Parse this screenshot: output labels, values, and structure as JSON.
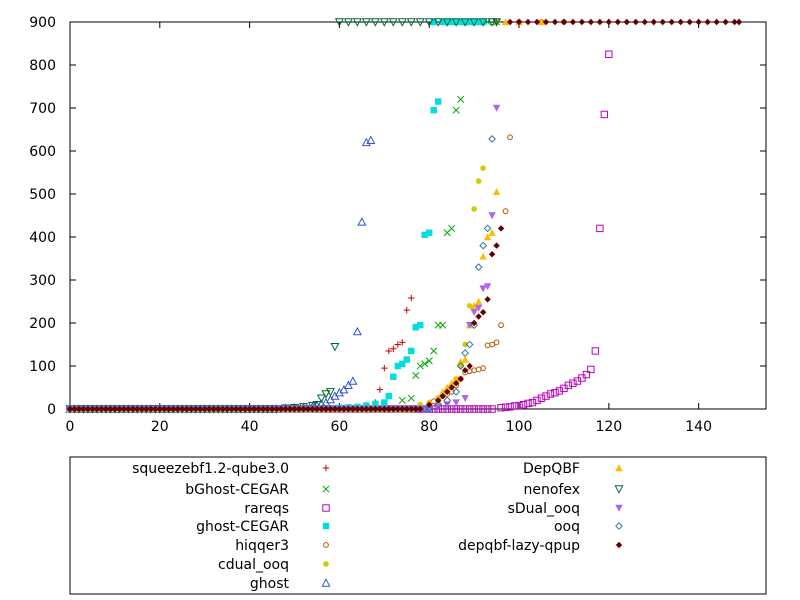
{
  "chart_data": {
    "type": "scatter",
    "title": "",
    "xlabel": "",
    "ylabel": "",
    "xlim": [
      0,
      155
    ],
    "ylim": [
      0,
      900
    ],
    "x_ticks": [
      0,
      20,
      40,
      60,
      80,
      100,
      120,
      140
    ],
    "y_ticks": [
      0,
      100,
      200,
      300,
      400,
      500,
      600,
      700,
      800,
      900
    ],
    "grid": false,
    "legend_placement": "below",
    "series": [
      {
        "name": "squeezebf1.2-qube3.0",
        "color": "#cc0000",
        "marker": "plus",
        "baseline_max_x": 66,
        "points": [
          [
            68,
            15
          ],
          [
            69,
            45
          ],
          [
            70,
            95
          ],
          [
            71,
            135
          ],
          [
            72,
            140
          ],
          [
            73,
            150
          ],
          [
            74,
            155
          ],
          [
            75,
            230
          ],
          [
            76,
            258
          ],
          [
            90,
            900
          ],
          [
            92,
            900
          ],
          [
            95,
            900
          ],
          [
            100,
            900
          ],
          [
            110,
            900
          ],
          [
            120,
            900
          ],
          [
            130,
            900
          ],
          [
            140,
            900
          ],
          [
            149,
            900
          ]
        ]
      },
      {
        "name": "bGhost-CEGAR",
        "color": "#00aa00",
        "marker": "x",
        "baseline_max_x": 62,
        "points": [
          [
            66,
            5
          ],
          [
            70,
            10
          ],
          [
            74,
            20
          ],
          [
            76,
            25
          ],
          [
            77,
            78
          ],
          [
            78,
            100
          ],
          [
            79,
            105
          ],
          [
            80,
            112
          ],
          [
            81,
            135
          ],
          [
            82,
            195
          ],
          [
            83,
            195
          ],
          [
            84,
            410
          ],
          [
            85,
            420
          ],
          [
            86,
            695
          ],
          [
            87,
            720
          ],
          [
            88,
            900
          ],
          [
            89,
            900
          ],
          [
            91,
            900
          ],
          [
            93,
            900
          ],
          [
            95,
            900
          ]
        ]
      },
      {
        "name": "rareqs",
        "color": "#bb00bb",
        "marker": "square",
        "baseline_max_x": 94,
        "points": [
          [
            96,
            3
          ],
          [
            97,
            4
          ],
          [
            98,
            5
          ],
          [
            99,
            7
          ],
          [
            100,
            8
          ],
          [
            101,
            10
          ],
          [
            102,
            13
          ],
          [
            103,
            15
          ],
          [
            104,
            20
          ],
          [
            105,
            25
          ],
          [
            106,
            30
          ],
          [
            107,
            35
          ],
          [
            108,
            38
          ],
          [
            109,
            42
          ],
          [
            110,
            48
          ],
          [
            111,
            55
          ],
          [
            112,
            60
          ],
          [
            113,
            65
          ],
          [
            114,
            72
          ],
          [
            115,
            80
          ],
          [
            116,
            92
          ],
          [
            117,
            135
          ],
          [
            118,
            420
          ],
          [
            119,
            685
          ],
          [
            120,
            825
          ]
        ]
      },
      {
        "name": "ghost-CEGAR",
        "color": "#00dddd",
        "marker": "filled-square",
        "baseline_max_x": 56,
        "points": [
          [
            58,
            2
          ],
          [
            60,
            3
          ],
          [
            62,
            4
          ],
          [
            64,
            5
          ],
          [
            66,
            8
          ],
          [
            68,
            12
          ],
          [
            70,
            15
          ],
          [
            71,
            30
          ],
          [
            72,
            75
          ],
          [
            73,
            100
          ],
          [
            74,
            105
          ],
          [
            75,
            115
          ],
          [
            76,
            135
          ],
          [
            77,
            190
          ],
          [
            78,
            195
          ],
          [
            79,
            405
          ],
          [
            80,
            410
          ],
          [
            81,
            695
          ],
          [
            82,
            715
          ],
          [
            81,
            900
          ],
          [
            83,
            900
          ],
          [
            84,
            900
          ],
          [
            85,
            900
          ],
          [
            86,
            900
          ],
          [
            87,
            900
          ],
          [
            88,
            900
          ],
          [
            89,
            900
          ],
          [
            90,
            900
          ],
          [
            91,
            900
          ],
          [
            92,
            900
          ]
        ]
      },
      {
        "name": "hiqqer3",
        "color": "#bb5500",
        "marker": "circle",
        "baseline_max_x": 76,
        "points": [
          [
            78,
            8
          ],
          [
            80,
            12
          ],
          [
            81,
            18
          ],
          [
            82,
            25
          ],
          [
            83,
            30
          ],
          [
            84,
            35
          ],
          [
            85,
            40
          ],
          [
            86,
            55
          ],
          [
            87,
            70
          ],
          [
            88,
            85
          ],
          [
            89,
            88
          ],
          [
            90,
            90
          ],
          [
            91,
            92
          ],
          [
            92,
            95
          ],
          [
            93,
            148
          ],
          [
            94,
            150
          ],
          [
            95,
            155
          ],
          [
            96,
            195
          ],
          [
            97,
            460
          ],
          [
            98,
            632
          ],
          [
            100,
            900
          ],
          [
            105,
            900
          ],
          [
            110,
            900
          ]
        ]
      },
      {
        "name": "cdual_ooq",
        "color": "#cccc00",
        "marker": "filled-circle",
        "baseline_max_x": 76,
        "points": [
          [
            78,
            10
          ],
          [
            80,
            15
          ],
          [
            82,
            25
          ],
          [
            84,
            40
          ],
          [
            86,
            70
          ],
          [
            87,
            100
          ],
          [
            88,
            150
          ],
          [
            89,
            240
          ],
          [
            90,
            465
          ],
          [
            91,
            530
          ],
          [
            92,
            560
          ]
        ]
      },
      {
        "name": "ghost",
        "color": "#3355cc",
        "marker": "triangle",
        "baseline_max_x": 46,
        "points": [
          [
            48,
            2
          ],
          [
            50,
            3
          ],
          [
            52,
            4
          ],
          [
            54,
            5
          ],
          [
            55,
            8
          ],
          [
            56,
            12
          ],
          [
            57,
            15
          ],
          [
            58,
            22
          ],
          [
            59,
            30
          ],
          [
            60,
            38
          ],
          [
            61,
            45
          ],
          [
            62,
            55
          ],
          [
            63,
            65
          ],
          [
            64,
            180
          ],
          [
            65,
            435
          ],
          [
            66,
            620
          ],
          [
            67,
            625
          ]
        ]
      },
      {
        "name": "DepQBF",
        "color": "#ffbb00",
        "marker": "filled-triangle",
        "baseline_max_x": 76,
        "points": [
          [
            78,
            8
          ],
          [
            80,
            15
          ],
          [
            82,
            22
          ],
          [
            83,
            40
          ],
          [
            84,
            50
          ],
          [
            85,
            60
          ],
          [
            86,
            70
          ],
          [
            87,
            110
          ],
          [
            88,
            115
          ],
          [
            89,
            195
          ],
          [
            90,
            240
          ],
          [
            91,
            250
          ],
          [
            92,
            355
          ],
          [
            93,
            400
          ],
          [
            94,
            410
          ],
          [
            95,
            505
          ],
          [
            97,
            900
          ],
          [
            100,
            900
          ],
          [
            105,
            900
          ]
        ]
      },
      {
        "name": "nenofex",
        "color": "#006633",
        "marker": "triangle-down",
        "baseline_max_x": 46,
        "points": [
          [
            48,
            2
          ],
          [
            50,
            3
          ],
          [
            52,
            5
          ],
          [
            54,
            8
          ],
          [
            55,
            10
          ],
          [
            56,
            25
          ],
          [
            57,
            35
          ],
          [
            58,
            40
          ],
          [
            59,
            145
          ],
          [
            60,
            900
          ],
          [
            62,
            900
          ],
          [
            64,
            900
          ],
          [
            66,
            900
          ],
          [
            68,
            900
          ],
          [
            70,
            900
          ],
          [
            72,
            900
          ],
          [
            74,
            900
          ],
          [
            76,
            900
          ],
          [
            78,
            900
          ],
          [
            80,
            900
          ],
          [
            82,
            900
          ],
          [
            84,
            900
          ],
          [
            86,
            900
          ],
          [
            88,
            900
          ],
          [
            90,
            900
          ],
          [
            92,
            900
          ],
          [
            94,
            900
          ],
          [
            95,
            900
          ]
        ]
      },
      {
        "name": "sDual_ooq",
        "color": "#aa66ee",
        "marker": "filled-triangle-down",
        "baseline_max_x": 80,
        "points": [
          [
            82,
            5
          ],
          [
            84,
            10
          ],
          [
            86,
            15
          ],
          [
            88,
            25
          ],
          [
            89,
            195
          ],
          [
            90,
            225
          ],
          [
            91,
            235
          ],
          [
            92,
            280
          ],
          [
            93,
            285
          ],
          [
            94,
            450
          ],
          [
            95,
            700
          ]
        ]
      },
      {
        "name": "ooq",
        "color": "#3377aa",
        "marker": "diamond",
        "baseline_max_x": 80,
        "points": [
          [
            82,
            10
          ],
          [
            84,
            20
          ],
          [
            86,
            40
          ],
          [
            87,
            100
          ],
          [
            88,
            130
          ],
          [
            89,
            150
          ],
          [
            90,
            195
          ],
          [
            91,
            330
          ],
          [
            92,
            380
          ],
          [
            93,
            420
          ],
          [
            94,
            628
          ]
        ]
      },
      {
        "name": "depqbf-lazy-qpup",
        "color": "#660000",
        "marker": "filled-diamond",
        "baseline_max_x": 78,
        "points": [
          [
            80,
            10
          ],
          [
            82,
            20
          ],
          [
            83,
            30
          ],
          [
            84,
            40
          ],
          [
            85,
            50
          ],
          [
            86,
            60
          ],
          [
            87,
            70
          ],
          [
            88,
            90
          ],
          [
            89,
            100
          ],
          [
            90,
            200
          ],
          [
            91,
            215
          ],
          [
            92,
            225
          ],
          [
            93,
            255
          ],
          [
            94,
            360
          ],
          [
            95,
            380
          ],
          [
            96,
            420
          ],
          [
            98,
            900
          ],
          [
            100,
            900
          ],
          [
            102,
            900
          ],
          [
            104,
            900
          ],
          [
            106,
            900
          ],
          [
            108,
            900
          ],
          [
            110,
            900
          ],
          [
            112,
            900
          ],
          [
            114,
            900
          ],
          [
            116,
            900
          ],
          [
            118,
            900
          ],
          [
            120,
            900
          ],
          [
            122,
            900
          ],
          [
            124,
            900
          ],
          [
            126,
            900
          ],
          [
            128,
            900
          ],
          [
            130,
            900
          ],
          [
            132,
            900
          ],
          [
            134,
            900
          ],
          [
            136,
            900
          ],
          [
            138,
            900
          ],
          [
            140,
            900
          ],
          [
            142,
            900
          ],
          [
            144,
            900
          ],
          [
            146,
            900
          ],
          [
            148,
            900
          ],
          [
            149,
            900
          ]
        ]
      }
    ]
  }
}
